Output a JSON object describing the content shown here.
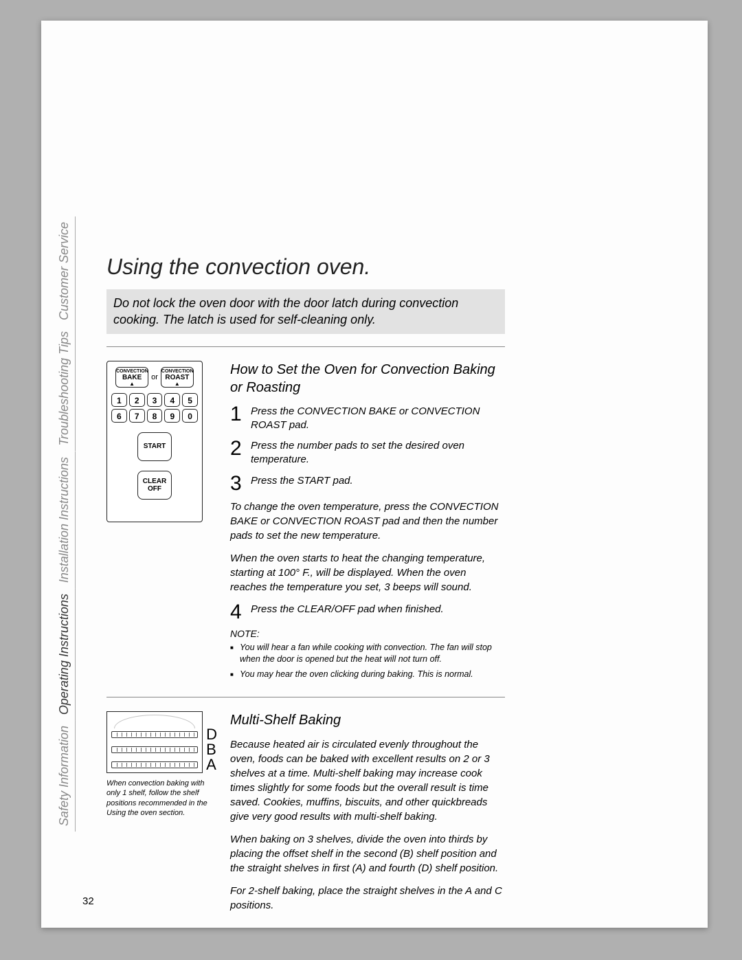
{
  "tabs": {
    "safety": "Safety Information",
    "operating": "Operating Instructions",
    "installation": "Installation Instructions",
    "troubleshooting": "Troubleshooting Tips",
    "customer": "Customer Service"
  },
  "title": "Using the convection oven.",
  "warning": "Do not lock the oven door with the door latch during convection cooking. The latch is used for self-cleaning only.",
  "panel": {
    "conv_bake_top": "CONVECTION",
    "conv_bake": "BAKE",
    "or": "or",
    "conv_roast_top": "CONVECTION",
    "conv_roast": "ROAST",
    "keys": [
      "1",
      "2",
      "3",
      "4",
      "5",
      "6",
      "7",
      "8",
      "9",
      "0"
    ],
    "start": "START",
    "clear": "CLEAR OFF"
  },
  "section1": {
    "heading": "How to Set the Oven for Convection Baking or Roasting",
    "steps": {
      "s1_num": "1",
      "s1": "Press the CONVECTION BAKE or CONVECTION ROAST pad.",
      "s2_num": "2",
      "s2": "Press the number pads to set the desired oven temperature.",
      "s3_num": "3",
      "s3": "Press the START pad.",
      "s4_num": "4",
      "s4": "Press the CLEAR/OFF pad when finished."
    },
    "p1": "To change the oven temperature, press the CONVECTION BAKE or CONVECTION ROAST pad and then the number pads to set the new temperature.",
    "p2": "When the oven starts to heat the changing temperature, starting at 100° F., will be displayed. When the oven reaches the temperature you set, 3 beeps will sound.",
    "note_label": "NOTE:",
    "note1": "You will hear a fan while cooking with convection. The fan will stop when the door is opened but the heat will not turn off.",
    "note2": "You may hear the oven clicking during baking. This is normal."
  },
  "section2": {
    "heading": "Multi-Shelf Baking",
    "shelf_d": "D",
    "shelf_b": "B",
    "shelf_a": "A",
    "caption": "When convection baking with only 1 shelf, follow the shelf positions recommended in the Using the oven section.",
    "p1": "Because heated air is circulated evenly throughout the oven, foods can be baked with excellent results on 2 or 3 shelves at a time. Multi-shelf baking may increase cook times slightly for some foods but the overall result is time saved. Cookies, muffins, biscuits, and other quickbreads give very good results with multi-shelf baking.",
    "p2": "When baking on 3 shelves, divide the oven into thirds by placing the offset shelf in the second (B) shelf position and the straight shelves in first (A) and fourth (D) shelf position.",
    "p3": "For 2-shelf baking, place the straight shelves in the A and C positions."
  },
  "pagenum": "32"
}
